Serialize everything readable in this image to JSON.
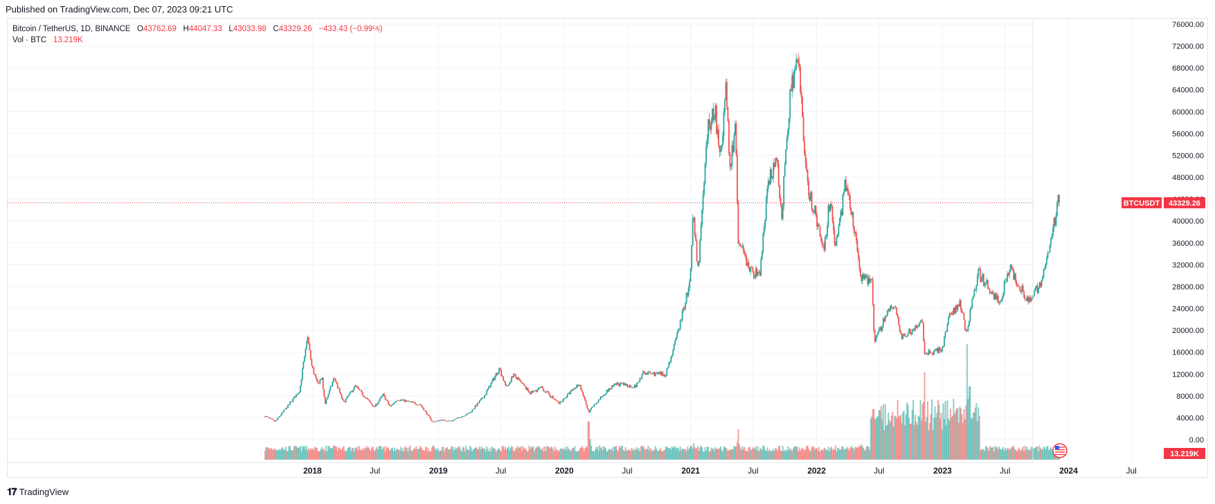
{
  "header": {
    "published": "Published on TradingView.com, Dec 07, 2023 09:21 UTC"
  },
  "legend": {
    "symbol": "Bitcoin / TetherUS, 1D, BINANCE",
    "open_label": "O",
    "open": "43762.69",
    "high_label": "H",
    "high": "44047.33",
    "low_label": "L",
    "low": "43033.98",
    "close_label": "C",
    "close": "43329.26",
    "change": "−433.43 (−0.99%)",
    "vol_label": "Vol · BTC",
    "vol_value": "13.219K"
  },
  "footer": {
    "logo": "𝟏𝟕",
    "brand": "TradingView"
  },
  "colors": {
    "up": "#26a69a",
    "down": "#ef5350",
    "accent": "#f23645",
    "grid": "#f0f3fa"
  },
  "chart_data": {
    "type": "candlestick",
    "title": "Bitcoin / TetherUS, 1D, BINANCE",
    "ylim": [
      0,
      76000
    ],
    "y_ticks": [
      "76000.00",
      "72000.00",
      "68000.00",
      "64000.00",
      "60000.00",
      "56000.00",
      "52000.00",
      "48000.00",
      "44000.00",
      "40000.00",
      "36000.00",
      "32000.00",
      "28000.00",
      "24000.00",
      "20000.00",
      "16000.00",
      "12000.00",
      "8000.00",
      "4000.00",
      "0.00"
    ],
    "x_range": [
      "2017-08-17",
      "2024-10-01"
    ],
    "x_ticks": [
      {
        "label": "2018",
        "date": "2018-01-01",
        "year": true
      },
      {
        "label": "Jul",
        "date": "2018-07-01",
        "year": false
      },
      {
        "label": "2019",
        "date": "2019-01-01",
        "year": true
      },
      {
        "label": "Jul",
        "date": "2019-07-01",
        "year": false
      },
      {
        "label": "2020",
        "date": "2020-01-01",
        "year": true
      },
      {
        "label": "Jul",
        "date": "2020-07-01",
        "year": false
      },
      {
        "label": "2021",
        "date": "2021-01-01",
        "year": true
      },
      {
        "label": "Jul",
        "date": "2021-07-01",
        "year": false
      },
      {
        "label": "2022",
        "date": "2022-01-01",
        "year": true
      },
      {
        "label": "Jul",
        "date": "2022-07-01",
        "year": false
      },
      {
        "label": "2023",
        "date": "2023-01-01",
        "year": true
      },
      {
        "label": "Jul",
        "date": "2023-07-01",
        "year": false
      },
      {
        "label": "2024",
        "date": "2024-01-01",
        "year": true
      },
      {
        "label": "Jul",
        "date": "2024-07-01",
        "year": false
      }
    ],
    "price_path": [
      [
        "2017-08-17",
        4300
      ],
      [
        "2017-09-15",
        3300
      ],
      [
        "2017-10-20",
        6000
      ],
      [
        "2017-11-25",
        9000
      ],
      [
        "2017-12-17",
        19000
      ],
      [
        "2017-12-30",
        13500
      ],
      [
        "2018-01-16",
        10000
      ],
      [
        "2018-01-28",
        11500
      ],
      [
        "2018-02-06",
        6500
      ],
      [
        "2018-03-05",
        11400
      ],
      [
        "2018-04-01",
        6700
      ],
      [
        "2018-05-05",
        9800
      ],
      [
        "2018-06-29",
        5900
      ],
      [
        "2018-07-25",
        8200
      ],
      [
        "2018-08-14",
        6000
      ],
      [
        "2018-09-04",
        7400
      ],
      [
        "2018-11-10",
        6400
      ],
      [
        "2018-12-15",
        3200
      ],
      [
        "2019-01-10",
        3600
      ],
      [
        "2019-02-07",
        3400
      ],
      [
        "2019-04-02",
        4900
      ],
      [
        "2019-05-14",
        8000
      ],
      [
        "2019-06-26",
        13000
      ],
      [
        "2019-07-17",
        9500
      ],
      [
        "2019-08-06",
        11900
      ],
      [
        "2019-09-24",
        8500
      ],
      [
        "2019-10-26",
        9500
      ],
      [
        "2019-12-17",
        6600
      ],
      [
        "2020-02-13",
        10300
      ],
      [
        "2020-03-12",
        4800
      ],
      [
        "2020-03-14",
        5300
      ],
      [
        "2020-04-30",
        8700
      ],
      [
        "2020-06-01",
        10200
      ],
      [
        "2020-07-25",
        9700
      ],
      [
        "2020-08-17",
        12200
      ],
      [
        "2020-10-20",
        11900
      ],
      [
        "2020-11-17",
        17600
      ],
      [
        "2020-12-31",
        29000
      ],
      [
        "2021-01-08",
        41000
      ],
      [
        "2021-01-22",
        31000
      ],
      [
        "2021-02-21",
        57000
      ],
      [
        "2021-03-13",
        61000
      ],
      [
        "2021-03-25",
        51000
      ],
      [
        "2021-04-14",
        64000
      ],
      [
        "2021-04-25",
        49000
      ],
      [
        "2021-05-10",
        58000
      ],
      [
        "2021-05-19",
        36000
      ],
      [
        "2021-06-22",
        31000
      ],
      [
        "2021-07-20",
        30000
      ],
      [
        "2021-08-14",
        47000
      ],
      [
        "2021-09-06",
        52000
      ],
      [
        "2021-09-21",
        40500
      ],
      [
        "2021-10-20",
        66000
      ],
      [
        "2021-11-10",
        68500
      ],
      [
        "2021-12-04",
        47000
      ],
      [
        "2022-01-22",
        35000
      ],
      [
        "2022-02-10",
        44500
      ],
      [
        "2022-02-24",
        35000
      ],
      [
        "2022-03-28",
        47500
      ],
      [
        "2022-05-10",
        30000
      ],
      [
        "2022-06-10",
        29000
      ],
      [
        "2022-06-18",
        17600
      ],
      [
        "2022-07-28",
        23900
      ],
      [
        "2022-08-14",
        24400
      ],
      [
        "2022-09-06",
        18700
      ],
      [
        "2022-11-05",
        21400
      ],
      [
        "2022-11-09",
        15600
      ],
      [
        "2022-12-31",
        16500
      ],
      [
        "2023-01-20",
        22700
      ],
      [
        "2023-02-21",
        25000
      ],
      [
        "2023-03-10",
        19600
      ],
      [
        "2023-04-14",
        30500
      ],
      [
        "2023-06-15",
        25000
      ],
      [
        "2023-07-13",
        31500
      ],
      [
        "2023-09-11",
        25000
      ],
      [
        "2023-10-20",
        30000
      ],
      [
        "2023-11-15",
        37500
      ],
      [
        "2023-12-05",
        44500
      ],
      [
        "2023-12-07",
        43329
      ]
    ],
    "volume_peaks": [
      [
        "2017-12-10",
        7
      ],
      [
        "2018-02-06",
        5
      ],
      [
        "2019-06-26",
        6
      ],
      [
        "2020-03-12",
        32
      ],
      [
        "2021-01-11",
        11
      ],
      [
        "2021-05-19",
        18
      ],
      [
        "2022-05-10",
        10
      ],
      [
        "2022-06-13",
        15
      ],
      [
        "2022-11-09",
        60
      ],
      [
        "2022-12-01",
        38
      ],
      [
        "2023-03-13",
        70
      ],
      [
        "2023-03-20",
        55
      ],
      [
        "2023-12-06",
        8
      ]
    ],
    "last_price_line": 43329.26,
    "last_price_label": "43329.26",
    "symbol_badge": "BTCUSDT",
    "volume_badge": "13.219K"
  }
}
